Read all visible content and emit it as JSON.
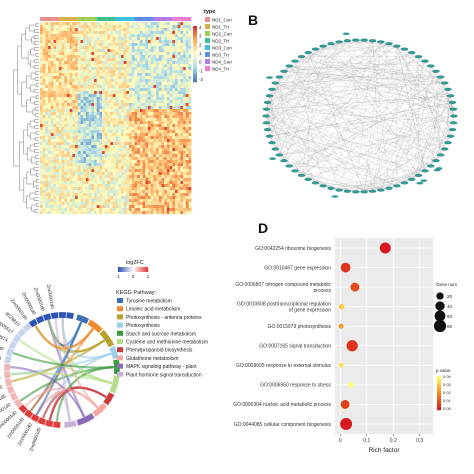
{
  "panels": {
    "b_label": "B",
    "d_label": "D"
  },
  "heatmap": {
    "legend_title": "type",
    "groups": [
      "ND1_Con",
      "ND1_Trt",
      "ND2_Con",
      "ND2_Trt",
      "ND3_Con",
      "ND3_Trt",
      "ND4_Con",
      "ND4_Trt"
    ],
    "group_colors": [
      "#e88e8e",
      "#d9b14a",
      "#9ccf4f",
      "#3cc18c",
      "#3fbfe0",
      "#5c8ee6",
      "#b27ae8",
      "#ee7ccf"
    ],
    "scale_ticks": [
      "4",
      "3",
      "2",
      "1",
      "0",
      "-1",
      "-2"
    ],
    "scale_colors": [
      "#d7301f",
      "#fdae61",
      "#ffffbf",
      "#abd9e9",
      "#4575b4"
    ]
  },
  "network": {
    "node_color": "#2f9d96",
    "node_count": 70
  },
  "chord": {
    "logfc_title": "log2FC",
    "logfc_ticks": [
      "-1",
      "0",
      "1"
    ],
    "pathway_title": "KEGG Pathway:",
    "pathways": [
      {
        "name": "Tyrosine metabolism",
        "color": "#3b6fb6"
      },
      {
        "name": "Linoleic acid metabolism",
        "color": "#f08a2c"
      },
      {
        "name": "Photosynthesis - antenna proteins",
        "color": "#b7a12a"
      },
      {
        "name": "Photosynthesis",
        "color": "#9ad0e8"
      },
      {
        "name": "Starch and sucrose metabolism",
        "color": "#3a9a3a"
      },
      {
        "name": "Cysteine and methionine metabolism",
        "color": "#b5dc8a"
      },
      {
        "name": "Phenylpropanoid biosynthesis",
        "color": "#c93a3a"
      },
      {
        "name": "Glutathione metabolism",
        "color": "#f4a6a0"
      },
      {
        "name": "MAPK signaling pathway - plant",
        "color": "#8b6bb8"
      },
      {
        "name": "Plant hormone signal transduction",
        "color": "#c9b3dc"
      }
    ],
    "gene_labels": [
      "Zm00001d0",
      "Zm00001d0",
      "Zm00001d0",
      "Zm00001d0",
      "Zm00001d0",
      "Zm00001d0",
      "Zm00001d0",
      "Zm00001d0",
      "Zm00001d0",
      "Zm00001d0",
      "Zm00001d0",
      "d028574",
      "d005517",
      "d029810",
      "Zm00001d0",
      "Zm00001d0",
      "Zm00001d0",
      "Zm00001d0"
    ]
  },
  "chart_data": {
    "type": "scatter",
    "xlabel": "Rich factor",
    "xlim": [
      -0.02,
      0.35
    ],
    "xticks": [
      "0",
      "0.1",
      "0.2",
      "0.3"
    ],
    "xtick_values": [
      0,
      0.1,
      0.2,
      0.3
    ],
    "categories": [
      "GO:0042254 ribosome biogenesis",
      "GO:0010467 gene expression",
      "GO:0006807 nitrogen compound metabolic process",
      "GO:0010608 posttranscriptional regulation of gene expression",
      "GO:0015979 photosynthesis",
      "GO:0007165 signal transduction",
      "GO:0009605 response to external stimulus",
      "GO:0006950 response to stress",
      "GO:0090304 nucleic acid metabolic process",
      "GO:0044085 cellular component biogenesis"
    ],
    "points": [
      {
        "term": "GO:0042254 ribosome biogenesis",
        "rich_factor": 0.17,
        "gene_number": 60,
        "p_value": 0.0
      },
      {
        "term": "GO:0010467 gene expression",
        "rich_factor": 0.02,
        "gene_number": 45,
        "p_value": 0.005
      },
      {
        "term": "GO:0006807 nitrogen compound metabolic process",
        "rich_factor": 0.055,
        "gene_number": 35,
        "p_value": 0.01
      },
      {
        "term": "GO:0010608 posttranscriptional regulation of gene expression",
        "rich_factor": 0.005,
        "gene_number": 8,
        "p_value": 0.035
      },
      {
        "term": "GO:0015979 photosynthesis",
        "rich_factor": 0.003,
        "gene_number": 5,
        "p_value": 0.025
      },
      {
        "term": "GO:0007165 signal transduction",
        "rich_factor": 0.045,
        "gene_number": 65,
        "p_value": 0.005
      },
      {
        "term": "GO:0009605 response to external stimulus",
        "rich_factor": 0.003,
        "gene_number": 5,
        "p_value": 0.04
      },
      {
        "term": "GO:0006950 response to stress",
        "rich_factor": 0.04,
        "gene_number": 8,
        "p_value": 0.045
      },
      {
        "term": "GO:0090304 nucleic acid metabolic process",
        "rich_factor": 0.018,
        "gene_number": 35,
        "p_value": 0.008
      },
      {
        "term": "GO:0044085 cellular component biogenesis",
        "rich_factor": 0.022,
        "gene_number": 75,
        "p_value": 0.0
      }
    ],
    "size_legend": {
      "title": "Gene num",
      "values": [
        "20",
        "40",
        "60",
        "80"
      ]
    },
    "color_legend": {
      "title": "p.value",
      "ticks": [
        "0.00",
        "0.01",
        "0.02",
        "0.03",
        "0.04"
      ],
      "low_color": "#d7191c",
      "high_color": "#ffff66"
    }
  }
}
